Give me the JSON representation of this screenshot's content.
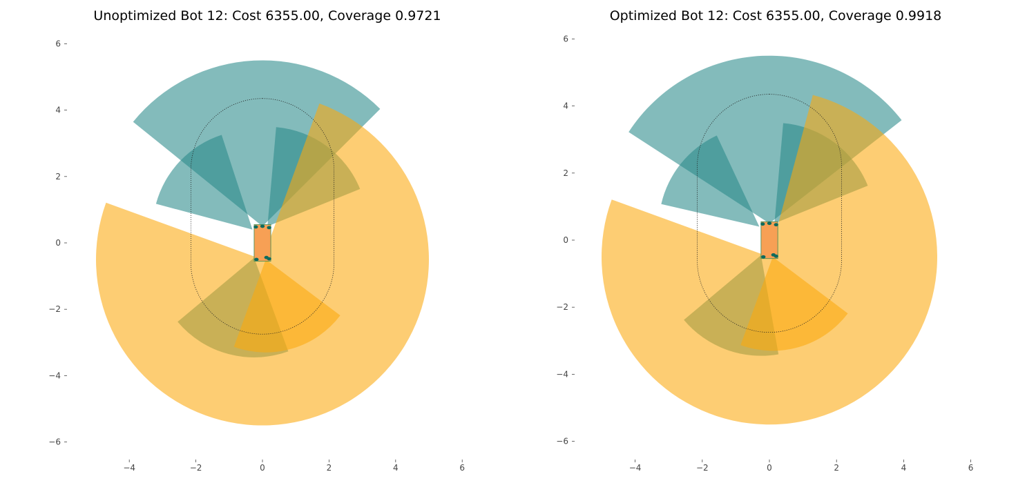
{
  "chart_data": [
    {
      "type": "sector-coverage",
      "title": "Unoptimized Bot 12: Cost 6355.00, Coverage 0.9721",
      "xlabel": "",
      "ylabel": "",
      "xlim": [
        -4.7,
        6.0
      ],
      "ylim": [
        -6.0,
        6.0
      ],
      "x_ticks": [
        "−4",
        "−2",
        "0",
        "2",
        "4",
        "6"
      ],
      "y_ticks": [
        "6",
        "4",
        "2",
        "0",
        "−2",
        "−4",
        "−6"
      ],
      "grid": false,
      "robot_body": {
        "x": [
          -0.25,
          0.25
        ],
        "y": [
          -0.55,
          0.55
        ]
      },
      "target_region": {
        "cx": 0.0,
        "cy": 0.8,
        "rx": 2.15,
        "ry": 3.55
      },
      "sectors": [
        {
          "sensor": "lidar-large-teal",
          "cx": 0.0,
          "cy": 0.5,
          "r": 5.0,
          "theta_start": 45,
          "theta_end": 141,
          "color": "#2a8a8a"
        },
        {
          "sensor": "lidar-small-teal-front",
          "cx": 0.15,
          "cy": 0.5,
          "r": 3.0,
          "theta_start": 22,
          "theta_end": 85,
          "color": "#2a8a8a"
        },
        {
          "sensor": "lidar-small-teal-left",
          "cx": -0.3,
          "cy": 0.4,
          "r": 3.0,
          "theta_start": 108,
          "theta_end": 165,
          "color": "#2a8a8a"
        },
        {
          "sensor": "lidar-small-teal-rear",
          "cx": -0.25,
          "cy": -0.45,
          "r": 3.0,
          "theta_start": 220,
          "theta_end": 290,
          "color": "#2a8a8a"
        },
        {
          "sensor": "lidar-large-orange",
          "cx": 0.0,
          "cy": -0.5,
          "r": 5.0,
          "theta_start": -200,
          "theta_end": 70,
          "color": "#fca80d"
        },
        {
          "sensor": "lidar-small-orange-rear",
          "cx": 0.1,
          "cy": -0.5,
          "r": 2.8,
          "theta_start": -110,
          "theta_end": -37,
          "color": "#fca80d"
        }
      ]
    },
    {
      "type": "sector-coverage",
      "title": "Optimized Bot 12: Cost 6355.00, Coverage 0.9918",
      "xlabel": "",
      "ylabel": "",
      "xlim": [
        -4.7,
        6.0
      ],
      "ylim": [
        -6.0,
        6.0
      ],
      "x_ticks": [
        "−4",
        "−2",
        "0",
        "2",
        "4",
        "6"
      ],
      "y_ticks": [
        "6",
        "4",
        "2",
        "0",
        "−2",
        "−4",
        "−6"
      ],
      "grid": false,
      "robot_body": {
        "x": [
          -0.25,
          0.25
        ],
        "y": [
          -0.55,
          0.55
        ]
      },
      "target_region": {
        "cx": 0.0,
        "cy": 0.8,
        "rx": 2.15,
        "ry": 3.55
      },
      "sectors": [
        {
          "sensor": "lidar-large-teal",
          "cx": 0.0,
          "cy": 0.5,
          "r": 5.0,
          "theta_start": 38,
          "theta_end": 147,
          "color": "#2a8a8a"
        },
        {
          "sensor": "lidar-small-teal-front",
          "cx": 0.15,
          "cy": 0.5,
          "r": 3.0,
          "theta_start": 22,
          "theta_end": 85,
          "color": "#2a8a8a"
        },
        {
          "sensor": "lidar-small-teal-left",
          "cx": -0.3,
          "cy": 0.4,
          "r": 3.0,
          "theta_start": 115,
          "theta_end": 167,
          "color": "#2a8a8a"
        },
        {
          "sensor": "lidar-small-teal-rear",
          "cx": -0.25,
          "cy": -0.45,
          "r": 3.0,
          "theta_start": 220,
          "theta_end": 280,
          "color": "#2a8a8a"
        },
        {
          "sensor": "lidar-large-orange",
          "cx": 0.0,
          "cy": -0.5,
          "r": 5.0,
          "theta_start": -200,
          "theta_end": 75,
          "color": "#fca80d"
        },
        {
          "sensor": "lidar-small-orange-rear",
          "cx": 0.1,
          "cy": -0.5,
          "r": 2.8,
          "theta_start": -110,
          "theta_end": -37,
          "color": "#fca80d"
        }
      ]
    }
  ]
}
